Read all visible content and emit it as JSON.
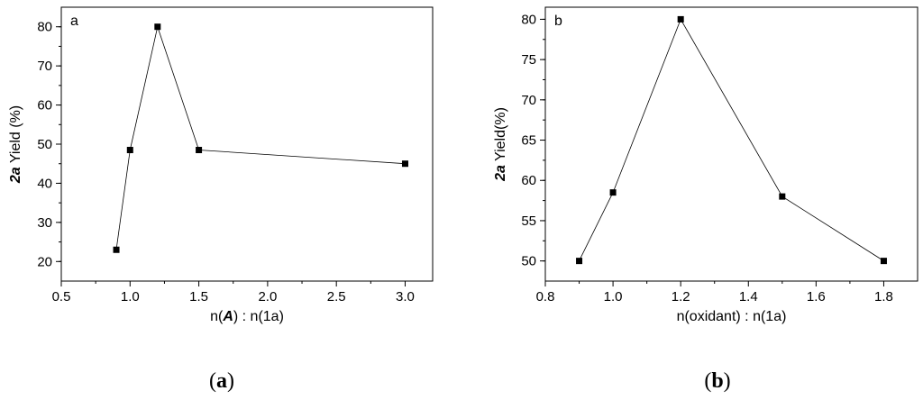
{
  "chart_data": [
    {
      "type": "line",
      "panel_label": "a",
      "caption_letter": "a",
      "xlabel_prefix": "n(",
      "xlabel_italic": "A",
      "xlabel_suffix": ") : n(1a)",
      "ylabel_italic": "2a",
      "ylabel_rest": " Yield (%)",
      "xlim": [
        0.5,
        3.2
      ],
      "ylim": [
        15,
        85
      ],
      "x_ticks": [
        0.5,
        1.0,
        1.5,
        2.0,
        2.5,
        3.0
      ],
      "x_tick_labels": [
        "0.5",
        "1.0",
        "1.5",
        "2.0",
        "2.5",
        "3.0"
      ],
      "y_ticks": [
        20,
        30,
        40,
        50,
        60,
        70,
        80
      ],
      "y_tick_labels": [
        "20",
        "30",
        "40",
        "50",
        "60",
        "70",
        "80"
      ],
      "x": [
        0.9,
        1.0,
        1.2,
        1.5,
        3.0
      ],
      "y": [
        23,
        48.5,
        80,
        48.5,
        45
      ],
      "marker": "square",
      "grid": false
    },
    {
      "type": "line",
      "panel_label": "b",
      "caption_letter": "b",
      "xlabel_prefix": "n(oxidant) : n(1a)",
      "xlabel_italic": "",
      "xlabel_suffix": "",
      "ylabel_italic": "2a",
      "ylabel_rest": " Yield(%)",
      "xlim": [
        0.8,
        1.9
      ],
      "ylim": [
        47.5,
        81.5
      ],
      "x_ticks": [
        0.8,
        1.0,
        1.2,
        1.4,
        1.6,
        1.8
      ],
      "x_tick_labels": [
        "0.8",
        "1.0",
        "1.2",
        "1.4",
        "1.6",
        "1.8"
      ],
      "y_ticks": [
        50,
        55,
        60,
        65,
        70,
        75,
        80
      ],
      "y_tick_labels": [
        "50",
        "55",
        "60",
        "65",
        "70",
        "75",
        "80"
      ],
      "x": [
        0.9,
        1.0,
        1.2,
        1.5,
        1.8
      ],
      "y": [
        50,
        58.5,
        80,
        58,
        50
      ],
      "marker": "square",
      "grid": false
    }
  ]
}
